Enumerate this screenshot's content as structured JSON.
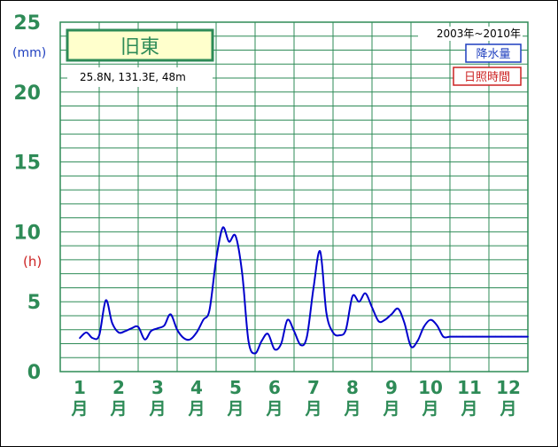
{
  "station": {
    "name": "旧東",
    "coords": "25.8N,  131.3E,  48m",
    "period": "2003年~2010年"
  },
  "legend": {
    "precip": "降水量",
    "sunshine": "日照時間"
  },
  "units": {
    "left_top": "(mm)",
    "left_mid": "(h)",
    "month_suffix": "月"
  },
  "colors": {
    "grid": "#2e8b57",
    "axis_text": "#2e8b57",
    "precip_line": "#0000cc",
    "precip_label": "#1f3fbf",
    "sunshine_label": "#cc2222",
    "station_box_fill": "#ffffcc"
  },
  "chart_data": {
    "type": "line",
    "title": "",
    "xlabel": "",
    "ylabel": "",
    "categories": [
      "1",
      "2",
      "3",
      "4",
      "5",
      "6",
      "7",
      "8",
      "9",
      "10",
      "11",
      "12"
    ],
    "ylim": [
      0,
      25
    ],
    "yticks": [
      0,
      5,
      10,
      15,
      20,
      25
    ],
    "grid": true,
    "series": [
      {
        "name": "降水量",
        "color": "#0000cc",
        "x": [
          1,
          1.17,
          1.33,
          1.5,
          1.67,
          1.83,
          2,
          2.17,
          2.33,
          2.5,
          2.67,
          2.83,
          3,
          3.17,
          3.33,
          3.5,
          3.67,
          3.83,
          4,
          4.17,
          4.33,
          4.5,
          4.67,
          4.83,
          5,
          5.17,
          5.33,
          5.5,
          5.67,
          5.83,
          6,
          6.17,
          6.33,
          6.5,
          6.67,
          6.83,
          7,
          7.17,
          7.33,
          7.5,
          7.67,
          7.83,
          8,
          8.17,
          8.33,
          8.5,
          8.67,
          8.83,
          9,
          9.17,
          9.33,
          9.5,
          9.67,
          9.83,
          10,
          10.17,
          10.33,
          10.5,
          10.67,
          10.83,
          11,
          11.17,
          11.33,
          11.5,
          11.67,
          11.83,
          12,
          12.17,
          12.33,
          12.5
        ],
        "values": [
          2.4,
          2.8,
          2.4,
          2.6,
          5.1,
          3.5,
          2.8,
          2.9,
          3.1,
          3.2,
          2.3,
          2.9,
          3.1,
          3.3,
          4.1,
          3.0,
          2.4,
          2.3,
          2.8,
          3.7,
          4.4,
          8.0,
          10.3,
          9.3,
          9.7,
          7.0,
          2.2,
          1.3,
          2.2,
          2.7,
          1.6,
          2.0,
          3.7,
          2.9,
          1.9,
          2.5,
          6.0,
          8.6,
          4.2,
          2.8,
          2.6,
          3.0,
          5.4,
          5.0,
          5.6,
          4.6,
          3.6,
          3.7,
          4.1,
          4.5,
          3.5,
          1.8,
          2.2,
          3.2,
          3.7,
          3.3,
          2.5,
          2.5,
          2.5,
          2.5,
          2.5,
          2.5,
          2.5,
          2.5,
          2.5,
          2.5,
          2.5,
          2.5,
          2.5,
          2.5
        ]
      }
    ]
  }
}
